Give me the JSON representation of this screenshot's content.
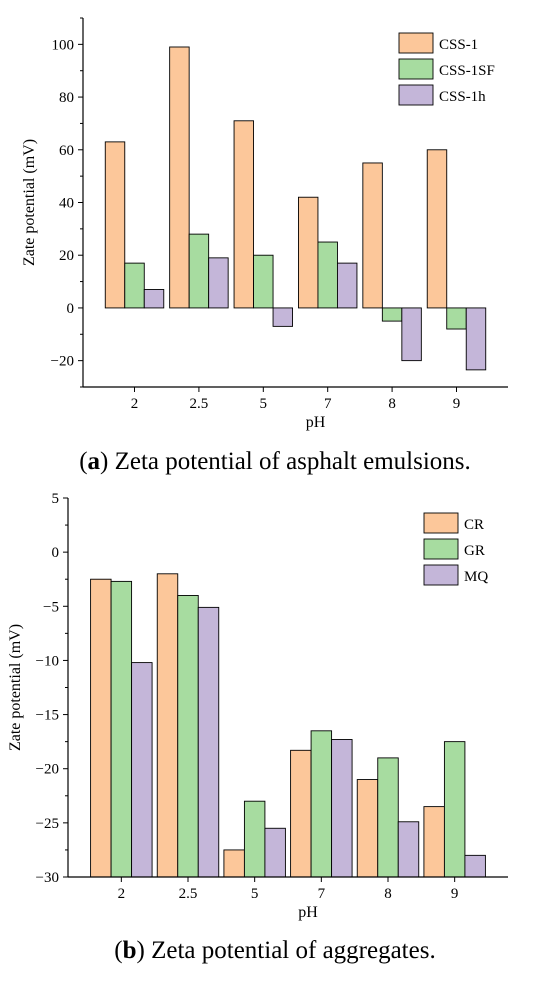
{
  "chart_data": [
    {
      "type": "bar",
      "categories": [
        "2",
        "2.5",
        "5",
        "7",
        "8",
        "9"
      ],
      "series": [
        {
          "name": "CSS-1",
          "values": [
            63,
            99,
            71,
            42,
            55,
            60
          ]
        },
        {
          "name": "CSS-1SF",
          "values": [
            17,
            28,
            20,
            25,
            -5,
            -8
          ]
        },
        {
          "name": "CSS-1h",
          "values": [
            7,
            19,
            -7,
            17,
            -20,
            -23.5
          ]
        }
      ],
      "colors": [
        "#fcc79a",
        "#a7dca0",
        "#c4b6d9"
      ],
      "xlabel": "pH",
      "ylabel": "Zate potential (mV)",
      "ylim": [
        -30,
        110
      ],
      "yticks": [
        -20,
        0,
        20,
        40,
        60,
        80,
        100
      ],
      "legend_position": "top-right",
      "grid": false
    },
    {
      "type": "bar",
      "categories": [
        "2",
        "2.5",
        "5",
        "7",
        "8",
        "9"
      ],
      "series": [
        {
          "name": "CR",
          "values": [
            -2.5,
            -2,
            -27.5,
            -18.3,
            -21,
            -23.5
          ]
        },
        {
          "name": "GR",
          "values": [
            -2.7,
            -4,
            -23,
            -16.5,
            -19,
            -17.5
          ]
        },
        {
          "name": "MQ",
          "values": [
            -10.2,
            -5.1,
            -25.5,
            -17.3,
            -24.9,
            -28
          ]
        }
      ],
      "colors": [
        "#fcc79a",
        "#a7dca0",
        "#c4b6d9"
      ],
      "xlabel": "pH",
      "ylabel": "Zate potential (mV)",
      "ylim": [
        -30,
        5
      ],
      "yticks": [
        -30,
        -25,
        -20,
        -15,
        -10,
        -5,
        0,
        5
      ],
      "legend_position": "top-right",
      "grid": false
    }
  ],
  "captions": [
    {
      "label": "a",
      "text": ") Zeta potential of asphalt emulsions.",
      "open": "("
    },
    {
      "label": "b",
      "text": ") Zeta potential of aggregates.",
      "open": "("
    }
  ]
}
